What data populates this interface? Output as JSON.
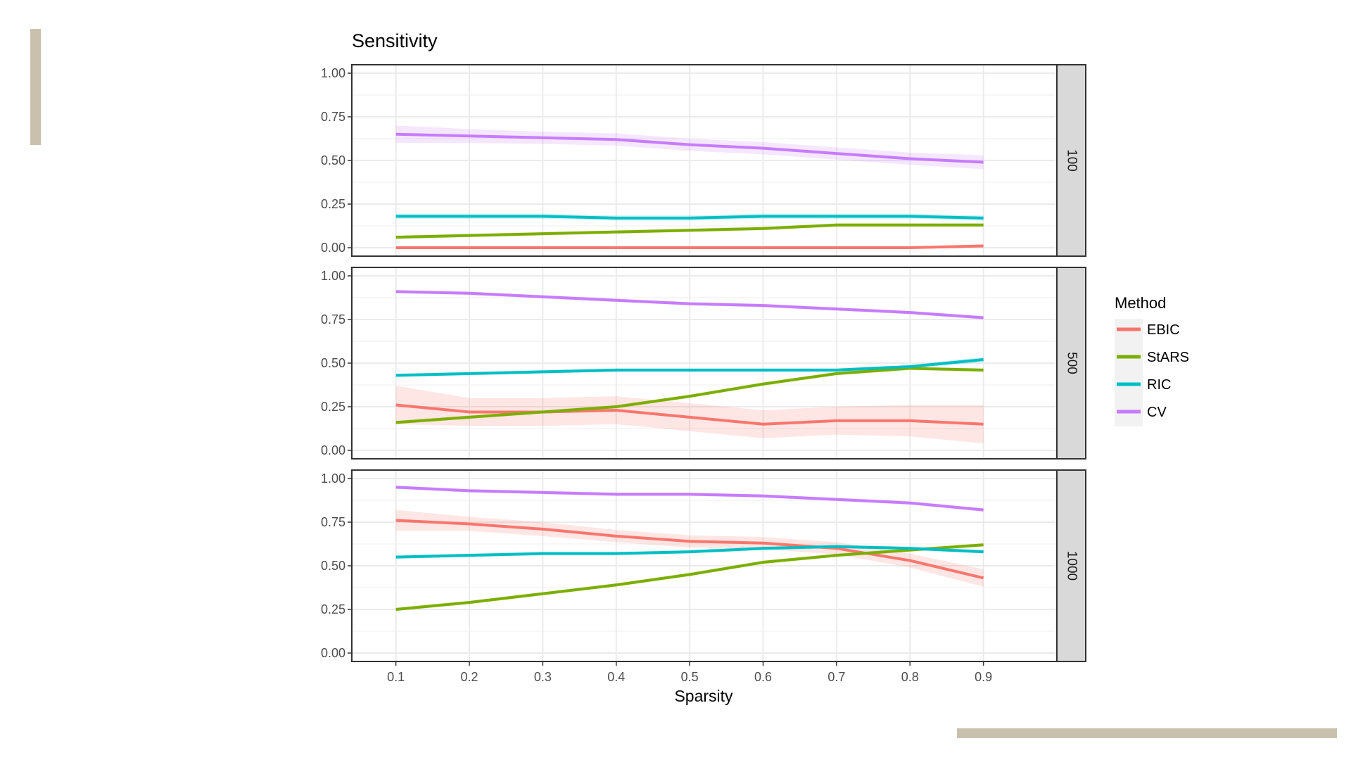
{
  "chart_data": {
    "type": "line",
    "title": "Sensitivity",
    "xlabel": "Sparsity",
    "ylabel": "",
    "x": [
      0.1,
      0.2,
      0.3,
      0.4,
      0.5,
      0.6,
      0.7,
      0.8,
      0.9
    ],
    "x_tick_labels": [
      "0.1",
      "0.2",
      "0.3",
      "0.4",
      "0.5",
      "0.6",
      "0.7",
      "0.8",
      "0.9"
    ],
    "ylim": [
      0,
      1
    ],
    "y_ticks": [
      0,
      0.25,
      0.5,
      0.75,
      1
    ],
    "y_tick_labels": [
      "0.00",
      "0.25",
      "0.50",
      "0.75",
      "1.00"
    ],
    "grid": true,
    "legend": {
      "title": "Method",
      "placement": "right",
      "entries": [
        "EBIC",
        "StARS",
        "RIC",
        "CV"
      ]
    },
    "colors": {
      "EBIC": "#f8766d",
      "StARS": "#7cae00",
      "RIC": "#00bfc4",
      "CV": "#c77cff"
    },
    "panels": [
      {
        "strip_label": "100",
        "series": [
          {
            "name": "EBIC",
            "values": [
              0.0,
              0.0,
              0.0,
              0.0,
              0.0,
              0.0,
              0.0,
              0.0,
              0.01
            ],
            "ribbon": [
              0.005,
              0.005,
              0.005,
              0.005,
              0.005,
              0.005,
              0.005,
              0.005,
              0.01
            ]
          },
          {
            "name": "StARS",
            "values": [
              0.06,
              0.07,
              0.08,
              0.09,
              0.1,
              0.11,
              0.13,
              0.13,
              0.13
            ],
            "ribbon": [
              0.01,
              0.01,
              0.01,
              0.01,
              0.01,
              0.01,
              0.01,
              0.01,
              0.01
            ]
          },
          {
            "name": "RIC",
            "values": [
              0.18,
              0.18,
              0.18,
              0.17,
              0.17,
              0.18,
              0.18,
              0.18,
              0.17
            ],
            "ribbon": [
              0.015,
              0.015,
              0.015,
              0.015,
              0.015,
              0.015,
              0.015,
              0.015,
              0.015
            ]
          },
          {
            "name": "CV",
            "values": [
              0.65,
              0.64,
              0.63,
              0.62,
              0.59,
              0.57,
              0.54,
              0.51,
              0.49
            ],
            "ribbon": [
              0.05,
              0.04,
              0.035,
              0.035,
              0.035,
              0.035,
              0.035,
              0.035,
              0.04
            ]
          }
        ]
      },
      {
        "strip_label": "500",
        "series": [
          {
            "name": "EBIC",
            "values": [
              0.26,
              0.22,
              0.22,
              0.23,
              0.19,
              0.15,
              0.17,
              0.17,
              0.15
            ],
            "ribbon": [
              0.11,
              0.08,
              0.08,
              0.08,
              0.08,
              0.08,
              0.08,
              0.09,
              0.11
            ]
          },
          {
            "name": "StARS",
            "values": [
              0.16,
              0.19,
              0.22,
              0.25,
              0.31,
              0.38,
              0.44,
              0.47,
              0.46
            ],
            "ribbon": [
              0.01,
              0.01,
              0.01,
              0.01,
              0.01,
              0.01,
              0.01,
              0.01,
              0.01
            ]
          },
          {
            "name": "RIC",
            "values": [
              0.43,
              0.44,
              0.45,
              0.46,
              0.46,
              0.46,
              0.46,
              0.48,
              0.52
            ],
            "ribbon": [
              0.01,
              0.01,
              0.01,
              0.01,
              0.01,
              0.01,
              0.01,
              0.01,
              0.015
            ]
          },
          {
            "name": "CV",
            "values": [
              0.91,
              0.9,
              0.88,
              0.86,
              0.84,
              0.83,
              0.81,
              0.79,
              0.76
            ],
            "ribbon": [
              0.01,
              0.01,
              0.01,
              0.01,
              0.01,
              0.01,
              0.01,
              0.01,
              0.01
            ]
          }
        ]
      },
      {
        "strip_label": "1000",
        "series": [
          {
            "name": "EBIC",
            "values": [
              0.76,
              0.74,
              0.71,
              0.67,
              0.64,
              0.63,
              0.6,
              0.53,
              0.43
            ],
            "ribbon": [
              0.06,
              0.04,
              0.04,
              0.035,
              0.035,
              0.035,
              0.035,
              0.04,
              0.05
            ]
          },
          {
            "name": "StARS",
            "values": [
              0.25,
              0.29,
              0.34,
              0.39,
              0.45,
              0.52,
              0.56,
              0.59,
              0.62
            ],
            "ribbon": [
              0.01,
              0.01,
              0.01,
              0.01,
              0.01,
              0.01,
              0.01,
              0.01,
              0.01
            ]
          },
          {
            "name": "RIC",
            "values": [
              0.55,
              0.56,
              0.57,
              0.57,
              0.58,
              0.6,
              0.61,
              0.6,
              0.58
            ],
            "ribbon": [
              0.01,
              0.01,
              0.01,
              0.01,
              0.01,
              0.01,
              0.01,
              0.01,
              0.01
            ]
          },
          {
            "name": "CV",
            "values": [
              0.95,
              0.93,
              0.92,
              0.91,
              0.91,
              0.9,
              0.88,
              0.86,
              0.82
            ],
            "ribbon": [
              0.01,
              0.01,
              0.01,
              0.01,
              0.01,
              0.01,
              0.01,
              0.01,
              0.01
            ]
          }
        ]
      }
    ]
  }
}
